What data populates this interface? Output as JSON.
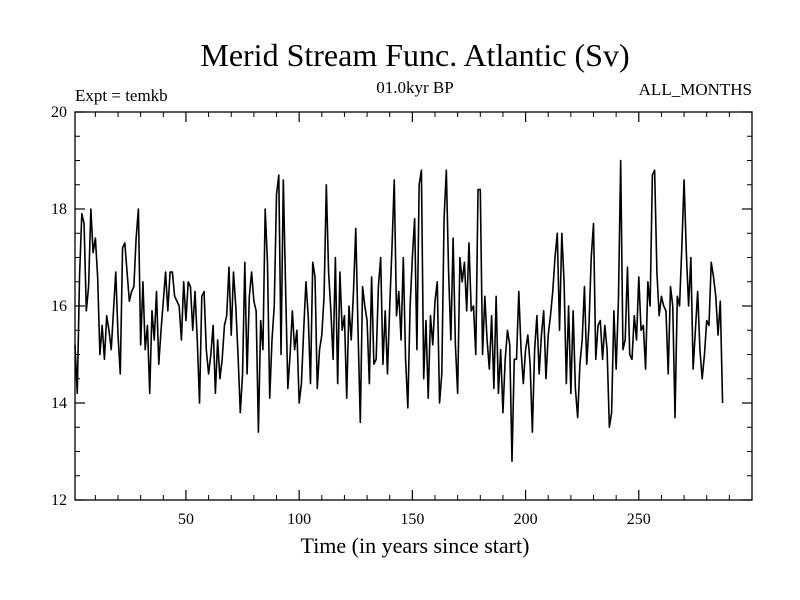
{
  "chart_data": {
    "type": "line",
    "title": "Merid Stream Func. Atlantic (Sv)",
    "subtitle_left": "Expt = temkb",
    "subtitle_center": "01.0kyr BP",
    "subtitle_right": "ALL_MONTHS",
    "xlabel": "Time (in years since start)",
    "ylabel": "",
    "xlim": [
      1,
      300
    ],
    "ylim": [
      12,
      20
    ],
    "xticks": [
      50,
      100,
      150,
      200,
      250
    ],
    "yticks": [
      12,
      14,
      16,
      18,
      20
    ],
    "grid": false,
    "series": [
      {
        "name": "Merid Stream Func. Atlantic",
        "color": "#000000",
        "x_start": 1,
        "x_step": 1,
        "values": [
          15.2,
          14.2,
          16.6,
          17.9,
          17.7,
          15.9,
          16.4,
          18.0,
          17.1,
          17.4,
          16.6,
          15.0,
          15.6,
          14.9,
          15.8,
          15.5,
          15.1,
          15.9,
          16.7,
          15.4,
          14.6,
          17.2,
          17.3,
          16.7,
          16.1,
          16.3,
          16.4,
          17.4,
          18.0,
          15.2,
          16.5,
          15.1,
          15.6,
          14.2,
          15.9,
          15.3,
          16.3,
          14.8,
          15.5,
          16.1,
          16.7,
          15.9,
          16.7,
          16.7,
          16.2,
          16.1,
          16.0,
          15.3,
          16.5,
          15.7,
          16.5,
          16.4,
          15.5,
          16.3,
          15.3,
          14.0,
          16.2,
          16.3,
          15.1,
          14.6,
          15.0,
          15.6,
          14.2,
          15.3,
          14.5,
          14.9,
          15.6,
          15.8,
          16.8,
          15.4,
          16.7,
          16.0,
          15.0,
          13.8,
          14.6,
          16.9,
          14.6,
          16.2,
          16.7,
          16.1,
          15.9,
          13.4,
          15.7,
          15.1,
          18.0,
          16.9,
          14.1,
          15.3,
          16.0,
          18.3,
          18.7,
          15.0,
          18.6,
          16.4,
          14.3,
          15.0,
          15.9,
          15.1,
          15.5,
          14.0,
          14.4,
          15.5,
          16.5,
          15.8,
          14.4,
          16.9,
          16.6,
          14.3,
          15.1,
          15.4,
          16.2,
          18.5,
          16.7,
          15.9,
          14.9,
          17.0,
          14.4,
          16.7,
          15.5,
          15.8,
          14.1,
          16.0,
          15.3,
          16.3,
          17.6,
          15.5,
          13.6,
          16.4,
          16.0,
          15.7,
          14.4,
          16.6,
          14.8,
          14.9,
          16.4,
          17.0,
          14.8,
          15.9,
          14.6,
          16.0,
          17.2,
          18.6,
          15.8,
          16.3,
          15.3,
          17.0,
          14.9,
          13.9,
          16.0,
          17.0,
          17.8,
          15.1,
          18.5,
          18.8,
          14.5,
          15.7,
          14.1,
          15.8,
          15.2,
          16.1,
          16.5,
          14.0,
          14.6,
          17.8,
          18.8,
          16.7,
          15.3,
          17.4,
          15.2,
          14.2,
          17.0,
          16.5,
          16.9,
          15.9,
          17.3,
          15.9,
          16.0,
          15.0,
          18.4,
          18.4,
          15.0,
          16.2,
          15.3,
          14.7,
          15.8,
          14.3,
          16.2,
          14.2,
          15.1,
          13.8,
          14.9,
          15.5,
          15.2,
          12.8,
          14.9,
          14.9,
          16.3,
          15.1,
          14.4,
          15.1,
          15.4,
          14.8,
          13.4,
          15.1,
          15.8,
          14.6,
          15.4,
          15.9,
          14.5,
          15.4,
          15.8,
          16.3,
          17.0,
          17.5,
          15.5,
          17.5,
          16.5,
          14.4,
          16.0,
          14.2,
          15.9,
          14.3,
          13.7,
          14.8,
          15.3,
          16.4,
          14.8,
          15.6,
          17.0,
          17.7,
          14.9,
          15.6,
          15.7,
          14.9,
          15.6,
          15.1,
          13.5,
          13.8,
          15.9,
          14.7,
          16.1,
          19.0,
          15.1,
          15.3,
          16.8,
          15.0,
          14.9,
          15.8,
          15.3,
          16.6,
          15.5,
          15.6,
          14.7,
          16.5,
          16.0,
          18.7,
          18.8,
          16.7,
          15.8,
          16.2,
          16.0,
          15.9,
          14.6,
          16.4,
          16.0,
          13.7,
          16.2,
          16.0,
          17.2,
          18.6,
          17.1,
          16.0,
          17.0,
          14.7,
          15.5,
          16.3,
          15.1,
          14.5,
          15.0,
          15.7,
          15.6,
          16.9,
          16.6,
          16.2,
          15.4,
          16.1,
          14.0
        ]
      }
    ]
  }
}
